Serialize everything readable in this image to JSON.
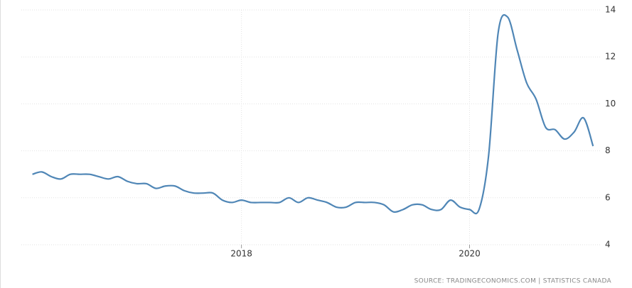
{
  "chart_data": {
    "type": "line",
    "x": [
      2016.167,
      2016.25,
      2016.333,
      2016.417,
      2016.5,
      2016.583,
      2016.667,
      2016.75,
      2016.833,
      2016.917,
      2017.0,
      2017.083,
      2017.167,
      2017.25,
      2017.333,
      2017.417,
      2017.5,
      2017.583,
      2017.667,
      2017.75,
      2017.833,
      2017.917,
      2018.0,
      2018.083,
      2018.167,
      2018.25,
      2018.333,
      2018.417,
      2018.5,
      2018.583,
      2018.667,
      2018.75,
      2018.833,
      2018.917,
      2019.0,
      2019.083,
      2019.167,
      2019.25,
      2019.333,
      2019.417,
      2019.5,
      2019.583,
      2019.667,
      2019.75,
      2019.833,
      2019.917,
      2020.0,
      2020.083,
      2020.167,
      2020.25,
      2020.333,
      2020.417,
      2020.5,
      2020.583,
      2020.667,
      2020.75,
      2020.833,
      2020.917,
      2021.0,
      2021.083
    ],
    "series": [
      {
        "color": "#4f86b6",
        "values": [
          7.0,
          7.1,
          6.9,
          6.8,
          7.0,
          7.0,
          7.0,
          6.9,
          6.8,
          6.9,
          6.7,
          6.6,
          6.6,
          6.4,
          6.5,
          6.5,
          6.3,
          6.2,
          6.2,
          6.2,
          5.9,
          5.8,
          5.9,
          5.8,
          5.8,
          5.8,
          5.8,
          6.0,
          5.8,
          6.0,
          5.9,
          5.8,
          5.6,
          5.6,
          5.8,
          5.8,
          5.8,
          5.7,
          5.4,
          5.5,
          5.7,
          5.7,
          5.5,
          5.5,
          5.9,
          5.6,
          5.5,
          5.5,
          7.8,
          13.0,
          13.7,
          12.3,
          10.9,
          10.2,
          9.0,
          8.9,
          8.5,
          8.8,
          9.4,
          8.2
        ]
      }
    ],
    "xlim": [
      2016.07,
      2021.15
    ],
    "xticks": [
      2018,
      2020
    ],
    "ylim": [
      4,
      14
    ],
    "yticks": [
      4,
      6,
      8,
      10,
      12,
      14
    ],
    "grid": true,
    "source": "SOURCE: TRADINGECONOMICS.COM | STATISTICS CANADA"
  }
}
